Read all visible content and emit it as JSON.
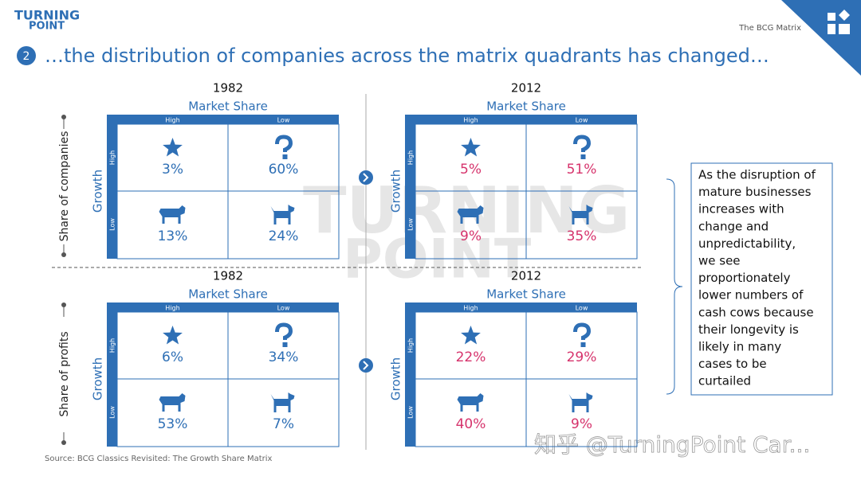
{
  "header": {
    "logo": [
      "TURNING",
      "POINT"
    ],
    "section_label": "The BCG Matrix",
    "step_number": "2",
    "title": "…the distribution of companies across the matrix quadrants has changed…"
  },
  "watermark_logo": [
    "TURNING",
    "POINT"
  ],
  "rows": [
    {
      "side_label": "Share of companies",
      "matrices": [
        {
          "year": "1982",
          "axis_label": "Market Share",
          "col_labels": [
            "High",
            "Low"
          ],
          "row_axis": "Growth",
          "row_labels": [
            "High",
            "Low"
          ],
          "value_color": "#2e6fb5",
          "values": [
            [
              "3%",
              "60%"
            ],
            [
              "13%",
              "24%"
            ]
          ]
        },
        {
          "year": "2012",
          "axis_label": "Market Share",
          "col_labels": [
            "High",
            "Low"
          ],
          "row_axis": "Growth",
          "row_labels": [
            "High",
            "Low"
          ],
          "value_color": "#d6336c",
          "values": [
            [
              "5%",
              "51%"
            ],
            [
              "9%",
              "35%"
            ]
          ]
        }
      ]
    },
    {
      "side_label": "Share of profits",
      "matrices": [
        {
          "year": "1982",
          "axis_label": "Market Share",
          "col_labels": [
            "High",
            "Low"
          ],
          "row_axis": "Growth",
          "row_labels": [
            "High",
            "Low"
          ],
          "value_color": "#2e6fb5",
          "values": [
            [
              "6%",
              "34%"
            ],
            [
              "53%",
              "7%"
            ]
          ]
        },
        {
          "year": "2012",
          "axis_label": "Market Share",
          "col_labels": [
            "High",
            "Low"
          ],
          "row_axis": "Growth",
          "row_labels": [
            "High",
            "Low"
          ],
          "value_color": "#d6336c",
          "values": [
            [
              "22%",
              "29%"
            ],
            [
              "40%",
              "9%"
            ]
          ]
        }
      ]
    }
  ],
  "callout": [
    "As the disruption of",
    "mature businesses",
    "increases with",
    "change and",
    "unpredictability,",
    "we see",
    "proportionately",
    "lower numbers of",
    "cash cows because",
    "their longevity is",
    "likely in many",
    "cases to be",
    "curtailed"
  ],
  "source": "Source: BCG Classics Revisited: The Growth Share Matrix",
  "overlay_watermark": "知乎 @TurningPoint Car..."
}
